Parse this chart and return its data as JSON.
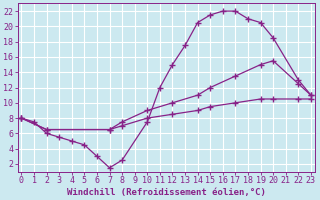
{
  "background_color": "#cce9f0",
  "line_color": "#882288",
  "grid_color": "#ffffff",
  "xlabel": "Windchill (Refroidissement éolien,°C)",
  "xlabel_fontsize": 6.5,
  "tick_fontsize": 6.0,
  "yticks": [
    2,
    4,
    6,
    8,
    10,
    12,
    14,
    16,
    18,
    20,
    22
  ],
  "xticks": [
    0,
    1,
    2,
    3,
    4,
    5,
    6,
    7,
    8,
    9,
    10,
    11,
    12,
    13,
    14,
    15,
    16,
    17,
    18,
    19,
    20,
    21,
    22,
    23
  ],
  "xlim": [
    -0.3,
    23.3
  ],
  "ylim": [
    1,
    23
  ],
  "series": [
    {
      "x": [
        0,
        1,
        2,
        3,
        4,
        5,
        6,
        7,
        8,
        10,
        11,
        12,
        13,
        14,
        15,
        16,
        17,
        18,
        19,
        20,
        22,
        23
      ],
      "y": [
        8,
        7.5,
        6,
        5.5,
        5,
        4.5,
        3,
        1.5,
        2.5,
        7.5,
        12,
        15,
        17.5,
        20.5,
        21.5,
        22,
        22,
        21,
        20.5,
        18.5,
        13,
        11
      ]
    },
    {
      "x": [
        0,
        2,
        7,
        8,
        10,
        12,
        14,
        15,
        17,
        19,
        20,
        22,
        23
      ],
      "y": [
        8,
        6.5,
        6.5,
        7.5,
        9,
        10,
        11,
        12,
        13.5,
        15,
        15.5,
        12.5,
        11
      ]
    },
    {
      "x": [
        0,
        2,
        7,
        8,
        10,
        12,
        14,
        15,
        17,
        19,
        20,
        22,
        23
      ],
      "y": [
        8,
        6.5,
        6.5,
        7,
        8,
        8.5,
        9,
        9.5,
        10,
        10.5,
        10.5,
        10.5,
        10.5
      ]
    }
  ]
}
